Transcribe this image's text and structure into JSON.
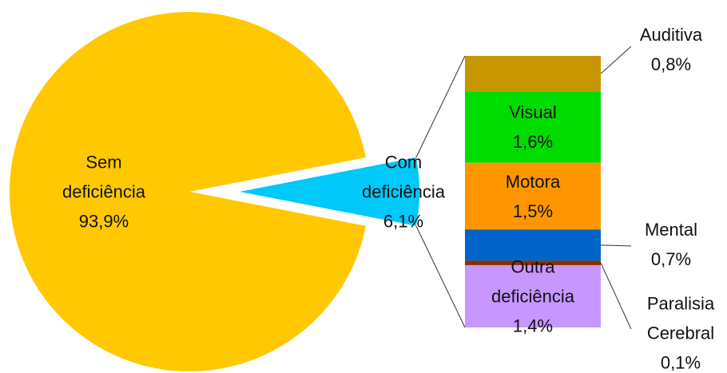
{
  "chart_data": {
    "type": "bar-of-pie",
    "pie": {
      "categories": [
        "Sem deficiência",
        "Com deficiência"
      ],
      "values": [
        93.9,
        6.1
      ],
      "value_labels": [
        "93,9%",
        "6,1%"
      ],
      "colors": [
        "#ffc800",
        "#00c8f8"
      ]
    },
    "bar": {
      "categories": [
        "Auditiva",
        "Visual",
        "Motora",
        "Mental",
        "Paralisia Cerebral",
        "Outra deficiência"
      ],
      "values": [
        0.8,
        1.6,
        1.5,
        0.7,
        0.1,
        1.4
      ],
      "value_labels": [
        "0,8%",
        "1,6%",
        "1,5%",
        "0,7%",
        "0,1%",
        "1,4%"
      ],
      "colors": [
        "#c89600",
        "#00dc00",
        "#ff9600",
        "#0064c8",
        "#8b3000",
        "#c896ff"
      ]
    }
  }
}
